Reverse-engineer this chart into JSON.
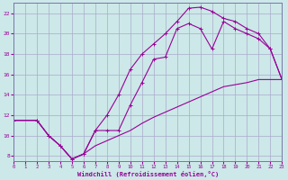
{
  "xlabel": "Windchill (Refroidissement éolien,°C)",
  "bg_color": "#cce8e8",
  "grid_color": "#aaaacc",
  "line_color": "#990099",
  "xlim": [
    0,
    23
  ],
  "ylim": [
    7.5,
    23.0
  ],
  "xticks": [
    0,
    1,
    2,
    3,
    4,
    5,
    6,
    7,
    8,
    9,
    10,
    11,
    12,
    13,
    14,
    15,
    16,
    17,
    18,
    19,
    20,
    21,
    22,
    23
  ],
  "yticks": [
    8,
    10,
    12,
    14,
    16,
    18,
    20,
    22
  ],
  "curve_upper_x": [
    0,
    2,
    3,
    4,
    5,
    6,
    7,
    8,
    9,
    10,
    11,
    12,
    13,
    14,
    15,
    16,
    17,
    18,
    19,
    20,
    21,
    22,
    23
  ],
  "curve_upper_y": [
    11.5,
    11.5,
    10.0,
    9.0,
    7.7,
    8.2,
    10.5,
    12.0,
    14.0,
    16.5,
    18.0,
    19.0,
    20.0,
    21.2,
    22.5,
    22.6,
    22.2,
    21.5,
    21.2,
    20.5,
    20.0,
    18.5,
    15.5
  ],
  "curve_lower_x": [
    0,
    2,
    3,
    4,
    5,
    6,
    7,
    8,
    9,
    10,
    11,
    12,
    13,
    14,
    15,
    16,
    17,
    18,
    19,
    20,
    21,
    22,
    23
  ],
  "curve_lower_y": [
    11.5,
    11.5,
    10.0,
    9.0,
    7.7,
    8.2,
    10.5,
    10.5,
    10.5,
    13.0,
    15.2,
    17.5,
    17.7,
    20.5,
    21.0,
    20.5,
    18.5,
    21.2,
    20.5,
    20.0,
    19.5,
    18.5,
    15.5
  ],
  "curve_diag_x": [
    0,
    2,
    3,
    4,
    5,
    6,
    7,
    8,
    9,
    10,
    11,
    12,
    13,
    14,
    15,
    16,
    17,
    18,
    19,
    20,
    21,
    22,
    23
  ],
  "curve_diag_y": [
    11.5,
    11.5,
    10.0,
    9.0,
    7.7,
    8.2,
    9.0,
    9.5,
    10.0,
    10.5,
    11.2,
    11.8,
    12.3,
    12.8,
    13.3,
    13.8,
    14.3,
    14.8,
    15.0,
    15.2,
    15.5,
    15.5,
    15.5
  ]
}
